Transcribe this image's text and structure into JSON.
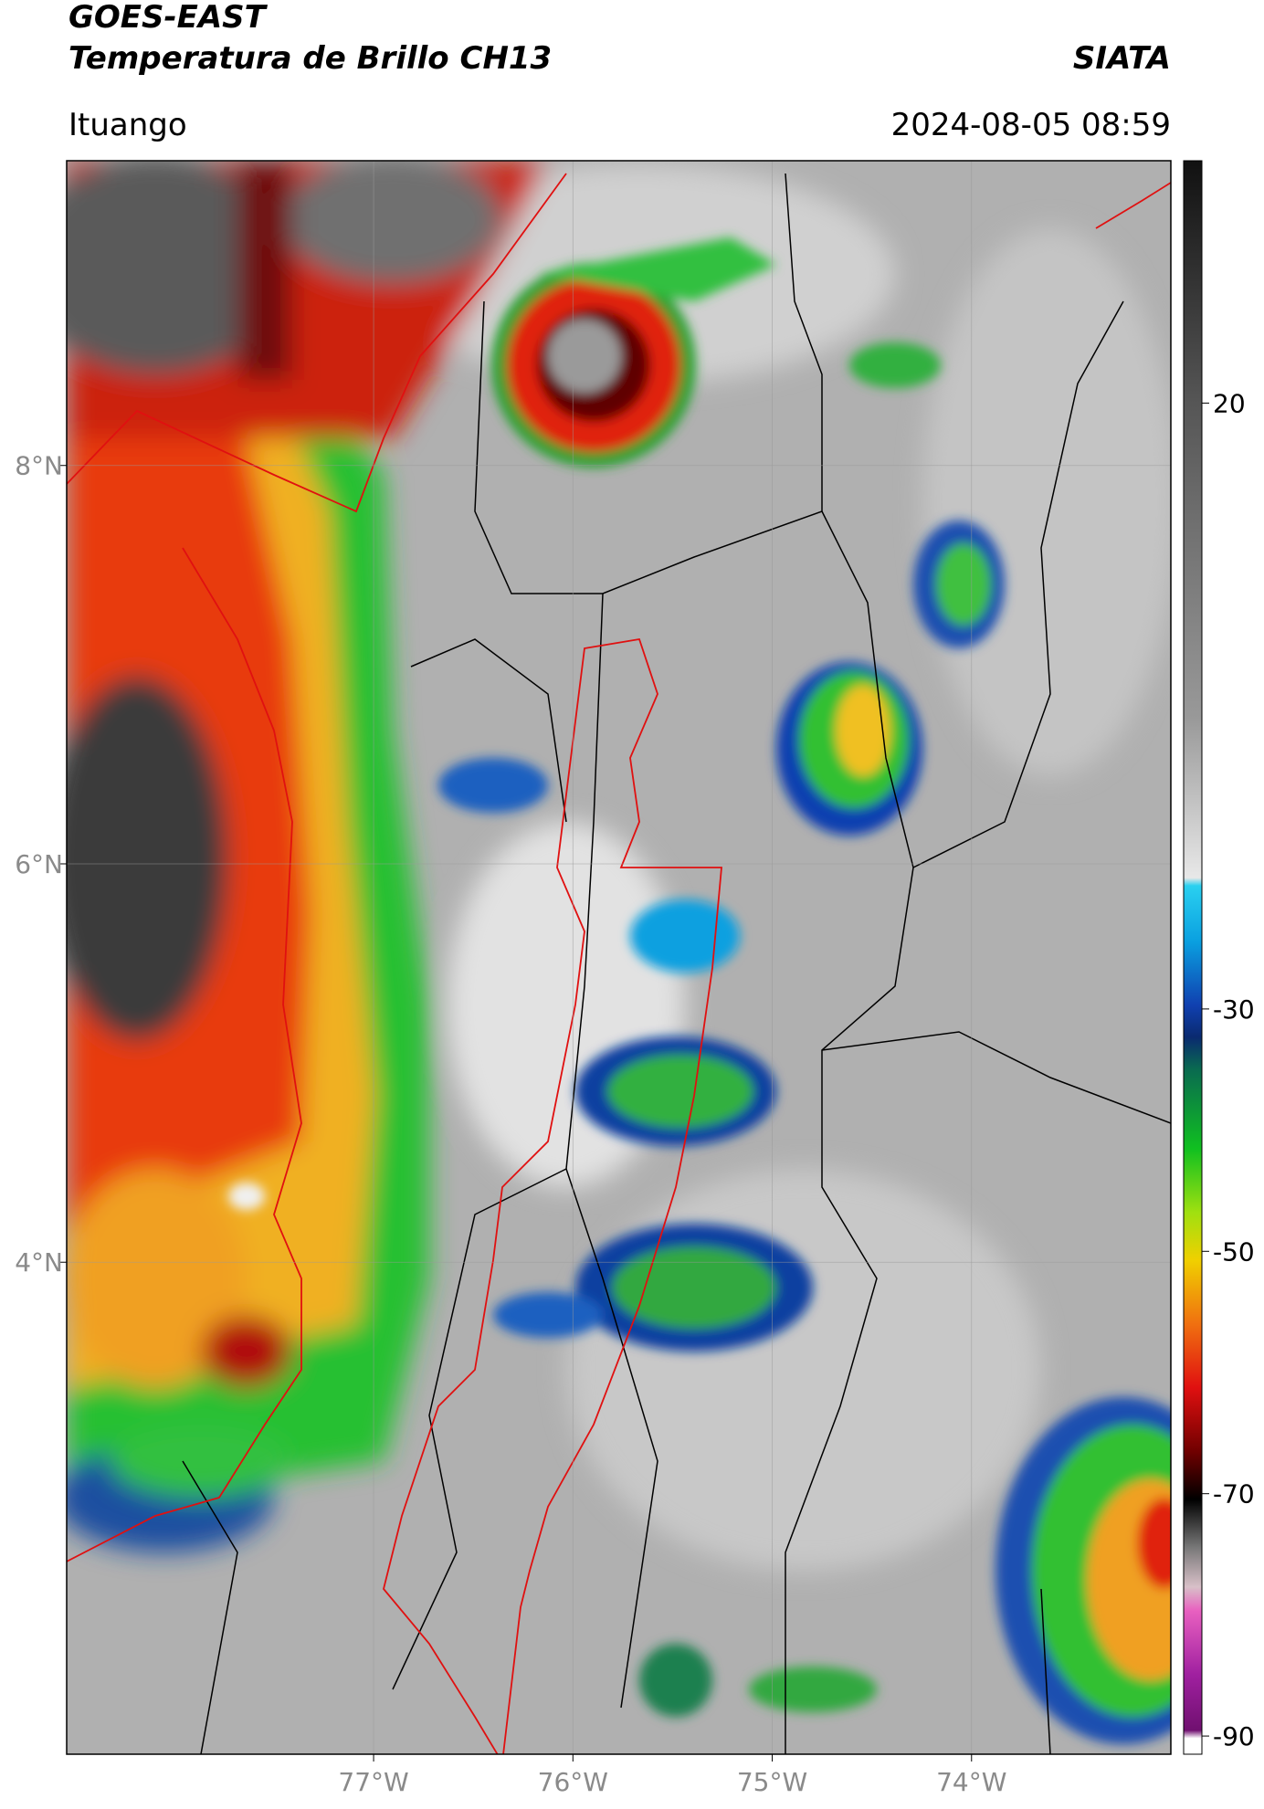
{
  "header": {
    "title": "GOES-EAST",
    "subtitle": "Temperatura de Brillo CH13",
    "agency": "SIATA",
    "location": "Ituango",
    "timestamp": "2024-08-05 08:59"
  },
  "map": {
    "type": "map",
    "xlim": [
      -78.54,
      -73.0
    ],
    "ylim": [
      1.53,
      9.53
    ],
    "xticks": [
      {
        "value": -77,
        "label": "77°W"
      },
      {
        "value": -76,
        "label": "76°W"
      },
      {
        "value": -75,
        "label": "75°W"
      },
      {
        "value": -74,
        "label": "74°W"
      }
    ],
    "yticks": [
      {
        "value": 8,
        "label": "8°N"
      },
      {
        "value": 6,
        "label": "6°N"
      },
      {
        "value": 4,
        "label": "4°N"
      }
    ],
    "grid": true
  },
  "colorbar": {
    "lim": [
      -91.5,
      40
    ],
    "ticks": [
      20,
      -30,
      -50,
      -70,
      -90
    ]
  }
}
